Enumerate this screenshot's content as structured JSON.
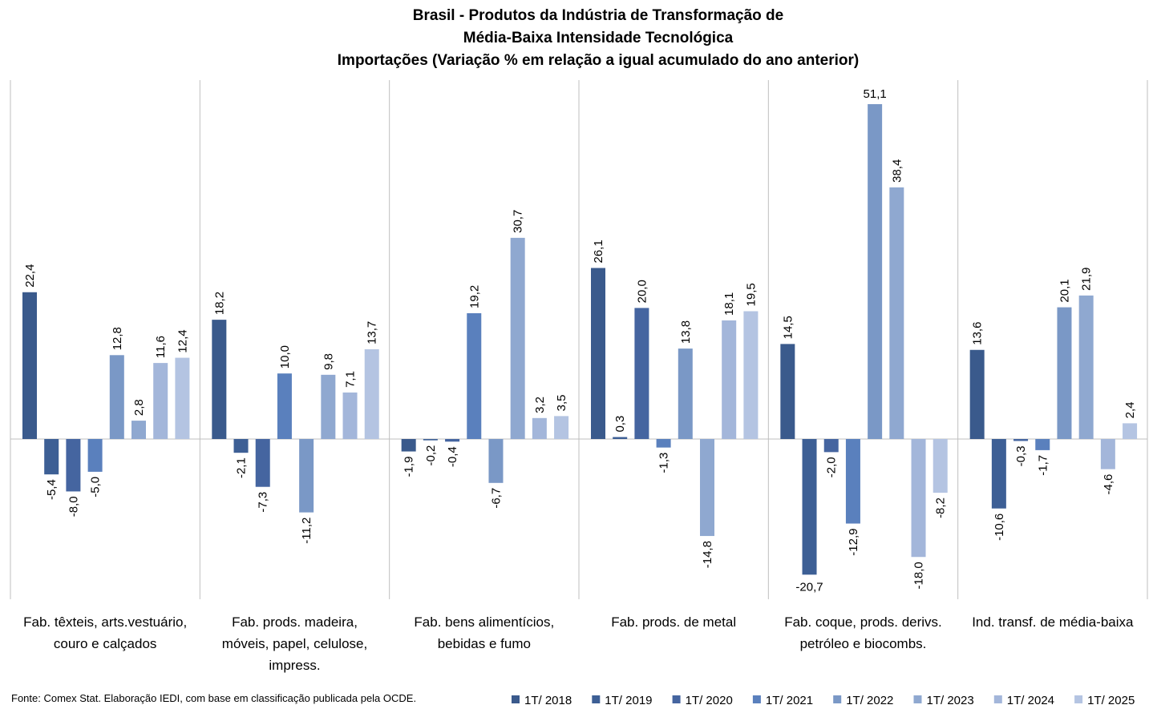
{
  "chart_data": {
    "type": "bar",
    "title": [
      "Brasil - Produtos da Indústria de Transformação de",
      "Média-Baixa Intensidade Tecnológica",
      "Importações (Variação % em relação a igual acumulado do ano anterior)"
    ],
    "categories": [
      [
        "Fab. têxteis, arts.vestuário,",
        "couro e calçados"
      ],
      [
        "Fab. prods. madeira,",
        "móveis, papel, celulose,",
        "impress."
      ],
      [
        "Fab. bens alimentícios,",
        "bebidas e fumo"
      ],
      [
        "Fab. prods. de metal"
      ],
      [
        "Fab. coque, prods. derivs.",
        "petróleo e biocombs."
      ],
      [
        "Ind. transf. de média-baixa"
      ]
    ],
    "series": [
      {
        "name": "1T/ 2018",
        "color": "#3a5a8c",
        "values": [
          22.4,
          18.2,
          -1.9,
          26.1,
          14.5,
          13.6
        ],
        "labels": [
          "22,4",
          "18,2",
          "-1,9",
          "26,1",
          "14,5",
          "13,6"
        ]
      },
      {
        "name": "1T/ 2019",
        "color": "#3d5f95",
        "values": [
          -5.4,
          -2.1,
          -0.2,
          0.3,
          -20.7,
          -10.6
        ],
        "labels": [
          "-5,4",
          "-2,1",
          "-0,2",
          "0,3",
          "-20,7",
          "-10,6"
        ]
      },
      {
        "name": "1T/ 2020",
        "color": "#4565a0",
        "values": [
          -8.0,
          -7.3,
          -0.4,
          20.0,
          -2.0,
          -0.3
        ],
        "labels": [
          "-8,0",
          "-7,3",
          "-0,4",
          "20,0",
          "-2,0",
          "-0,3"
        ]
      },
      {
        "name": "1T/ 2021",
        "color": "#5a80bd",
        "values": [
          -5.0,
          10.0,
          19.2,
          -1.3,
          -12.9,
          -1.7
        ],
        "labels": [
          "-5,0",
          "10,0",
          "19,2",
          "-1,3",
          "-12,9",
          "-1,7"
        ]
      },
      {
        "name": "1T/ 2022",
        "color": "#7a98c6",
        "values": [
          12.8,
          -11.2,
          -6.7,
          13.8,
          51.1,
          20.1
        ],
        "labels": [
          "12,8",
          "-11,2",
          "-6,7",
          "13,8",
          "51,1",
          "20,1"
        ]
      },
      {
        "name": "1T/ 2023",
        "color": "#8fa8d0",
        "values": [
          2.8,
          9.8,
          30.7,
          -14.8,
          38.4,
          21.9
        ],
        "labels": [
          "2,8",
          "9,8",
          "30,7",
          "-14,8",
          "38,4",
          "21,9"
        ]
      },
      {
        "name": "1T/ 2024",
        "color": "#a3b6da",
        "values": [
          11.6,
          7.1,
          3.2,
          18.1,
          -18.0,
          -4.6
        ],
        "labels": [
          "11,6",
          "7,1",
          "3,2",
          "18,1",
          "-18,0",
          "-4,6"
        ]
      },
      {
        "name": "1T/ 2025",
        "color": "#b4c4e2",
        "values": [
          12.4,
          13.7,
          3.5,
          19.5,
          -8.2,
          2.4
        ],
        "labels": [
          "12,4",
          "13,7",
          "3,5",
          "19,5",
          "-8,2",
          "2,4"
        ]
      }
    ],
    "ylim": [
      -24.5,
      55.5
    ],
    "grid": false,
    "legend_position": "bottom-right",
    "axis_color": "#bfbfbf"
  },
  "source": "Fonte: Comex Stat. Elaboração IEDI, com base em classificação publicada pela OCDE."
}
